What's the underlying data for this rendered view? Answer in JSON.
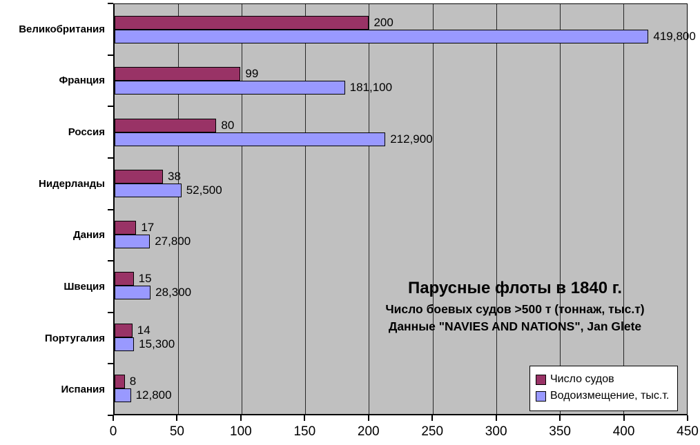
{
  "chart_data": {
    "type": "bar",
    "orientation": "horizontal",
    "title": "Парусные флоты в 1840 г.",
    "subtitle1": "Число боевых судов >500 т (тоннаж, тыс.т)",
    "subtitle2": "Данные \"NAVIES AND NATIONS\", Jan Glete",
    "categories": [
      "Великобритания",
      "Франция",
      "Россия",
      "Нидерланды",
      "Дания",
      "Швеция",
      "Португалия",
      "Испания"
    ],
    "series": [
      {
        "name": "Число судов",
        "color": "#993366",
        "values": [
          200,
          99,
          80,
          38,
          17,
          15,
          14,
          8
        ],
        "value_labels": [
          "200",
          "99",
          "80",
          "38",
          "17",
          "15",
          "14",
          "8"
        ]
      },
      {
        "name": "Водоизмещение, тыс.т.",
        "color": "#9999ff",
        "values": [
          419.8,
          181.1,
          212.9,
          52.5,
          27.8,
          28.3,
          15.3,
          12.8
        ],
        "value_labels": [
          "419,800",
          "181,100",
          "212,900",
          "52,500",
          "27,800",
          "28,300",
          "15,300",
          "12,800"
        ]
      }
    ],
    "xlim": [
      0,
      450
    ],
    "xticks": [
      0,
      50,
      100,
      150,
      200,
      250,
      300,
      350,
      400,
      450
    ],
    "xtick_labels": [
      "0",
      "50",
      "100",
      "150",
      "200",
      "250",
      "300",
      "350",
      "400",
      "450"
    ],
    "grid": true,
    "legend_position": "bottom-right",
    "plot_bg_color": "#c0c0c0",
    "gridline_color": "#262626"
  }
}
